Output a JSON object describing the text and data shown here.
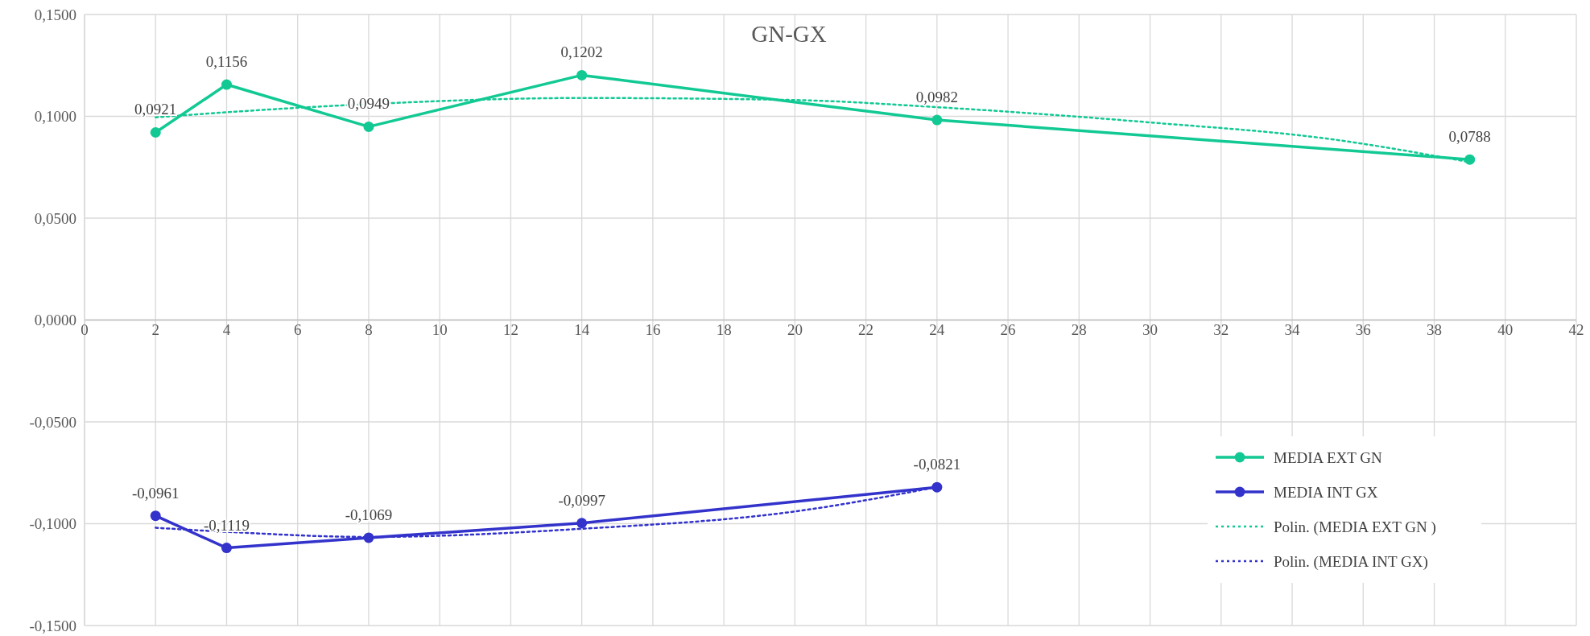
{
  "chart_data": {
    "type": "line",
    "title": "GN-GX",
    "xlim": [
      0,
      42
    ],
    "xticks": [
      0,
      2,
      4,
      6,
      8,
      10,
      12,
      14,
      16,
      18,
      20,
      22,
      24,
      26,
      28,
      30,
      32,
      34,
      36,
      38,
      40,
      42
    ],
    "ylim": [
      -0.15,
      0.15
    ],
    "yticks": [
      {
        "value": -0.15,
        "label": "-0,1500"
      },
      {
        "value": -0.1,
        "label": "-0,1000"
      },
      {
        "value": -0.05,
        "label": "-0,0500"
      },
      {
        "value": 0,
        "label": "0,0000"
      },
      {
        "value": 0.05,
        "label": "0,0500"
      },
      {
        "value": 0.1,
        "label": "0,1000"
      },
      {
        "value": 0.15,
        "label": "0,1500"
      }
    ],
    "grid": true,
    "legend": "bottom right",
    "series": [
      {
        "name": "MEDIA EXT GN",
        "color": "#12c994",
        "x": [
          2,
          4,
          8,
          14,
          24,
          39
        ],
        "values": [
          0.0921,
          0.1156,
          0.0949,
          0.1202,
          0.0982,
          0.0788
        ],
        "value_labels": [
          "0,0921",
          "0,1156",
          "0,0949",
          "0,1202",
          "0,0982",
          "0,0788"
        ],
        "marker": "circle",
        "line_style": "solid"
      },
      {
        "name": "MEDIA INT GX",
        "color": "#3333cc",
        "x": [
          2,
          4,
          8,
          14,
          24
        ],
        "values": [
          -0.0961,
          -0.1119,
          -0.1069,
          -0.0997,
          -0.0821
        ],
        "value_labels": [
          "-0,0961",
          "-0,1119",
          "-0,1069",
          "-0,0997",
          "-0,0821"
        ],
        "marker": "circle",
        "line_style": "solid"
      },
      {
        "name": "Polin. (MEDIA EXT GN )",
        "color": "#12c994",
        "x": [
          2,
          4,
          8,
          14,
          20,
          24,
          30,
          35,
          39
        ],
        "values": [
          0.0995,
          0.102,
          0.106,
          0.109,
          0.108,
          0.1045,
          0.097,
          0.089,
          0.0775
        ],
        "marker": "none",
        "line_style": "dotted"
      },
      {
        "name": "Polin. (MEDIA INT GX)",
        "color": "#3333cc",
        "x": [
          2,
          4,
          8,
          14,
          20,
          24
        ],
        "values": [
          -0.102,
          -0.104,
          -0.1065,
          -0.1025,
          -0.094,
          -0.082
        ],
        "marker": "none",
        "line_style": "dotted"
      }
    ]
  }
}
